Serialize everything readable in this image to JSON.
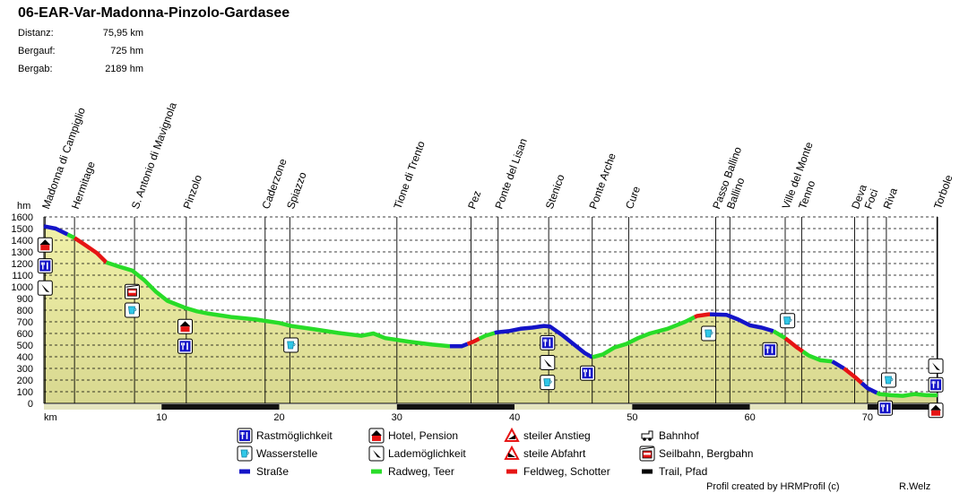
{
  "title": "06-EAR-Var-Madonna-Pinzolo-Gardasee",
  "stats": [
    {
      "label": "Distanz:",
      "value": "75,95 km"
    },
    {
      "label": "Bergauf:",
      "value": "725 hm"
    },
    {
      "label": "Bergab:",
      "value": "2189 hm"
    }
  ],
  "chart_data": {
    "type": "area",
    "title": "06-EAR-Var-Madonna-Pinzolo-Gardasee",
    "xlabel": "km",
    "ylabel": "hm",
    "xlim": [
      0,
      75.95
    ],
    "ylim": [
      0,
      1600
    ],
    "x_ticks": [
      10,
      20,
      30,
      40,
      50,
      60,
      70
    ],
    "y_ticks": [
      0,
      100,
      200,
      300,
      400,
      500,
      600,
      700,
      800,
      900,
      1000,
      1100,
      1200,
      1300,
      1400,
      1500,
      1600
    ],
    "grid": true,
    "profile": [
      {
        "x": 0,
        "y": 1520
      },
      {
        "x": 1,
        "y": 1500
      },
      {
        "x": 2,
        "y": 1450
      },
      {
        "x": 2.6,
        "y": 1420
      },
      {
        "x": 3.5,
        "y": 1360
      },
      {
        "x": 4.5,
        "y": 1290
      },
      {
        "x": 5.3,
        "y": 1210
      },
      {
        "x": 6.5,
        "y": 1170
      },
      {
        "x": 7.5,
        "y": 1140
      },
      {
        "x": 8.5,
        "y": 1060
      },
      {
        "x": 9.5,
        "y": 960
      },
      {
        "x": 10.5,
        "y": 880
      },
      {
        "x": 12,
        "y": 820
      },
      {
        "x": 13,
        "y": 790
      },
      {
        "x": 14,
        "y": 770
      },
      {
        "x": 16,
        "y": 740
      },
      {
        "x": 18,
        "y": 720
      },
      {
        "x": 19,
        "y": 705
      },
      {
        "x": 20,
        "y": 690
      },
      {
        "x": 21,
        "y": 665
      },
      {
        "x": 23,
        "y": 635
      },
      {
        "x": 25,
        "y": 605
      },
      {
        "x": 27,
        "y": 580
      },
      {
        "x": 28,
        "y": 600
      },
      {
        "x": 29,
        "y": 560
      },
      {
        "x": 31,
        "y": 530
      },
      {
        "x": 33,
        "y": 505
      },
      {
        "x": 34.5,
        "y": 490
      },
      {
        "x": 35.5,
        "y": 490
      },
      {
        "x": 36.5,
        "y": 530
      },
      {
        "x": 37.5,
        "y": 580
      },
      {
        "x": 38.5,
        "y": 610
      },
      {
        "x": 39.5,
        "y": 620
      },
      {
        "x": 40.5,
        "y": 640
      },
      {
        "x": 41.5,
        "y": 650
      },
      {
        "x": 42.5,
        "y": 665
      },
      {
        "x": 43,
        "y": 660
      },
      {
        "x": 44,
        "y": 590
      },
      {
        "x": 45,
        "y": 510
      },
      {
        "x": 46,
        "y": 430
      },
      {
        "x": 46.6,
        "y": 395
      },
      {
        "x": 47.5,
        "y": 420
      },
      {
        "x": 48.5,
        "y": 480
      },
      {
        "x": 49.5,
        "y": 510
      },
      {
        "x": 50.5,
        "y": 560
      },
      {
        "x": 51.5,
        "y": 600
      },
      {
        "x": 53,
        "y": 640
      },
      {
        "x": 54.5,
        "y": 700
      },
      {
        "x": 55.5,
        "y": 750
      },
      {
        "x": 56.5,
        "y": 765
      },
      {
        "x": 58,
        "y": 760
      },
      {
        "x": 59,
        "y": 720
      },
      {
        "x": 60,
        "y": 670
      },
      {
        "x": 61,
        "y": 650
      },
      {
        "x": 62,
        "y": 620
      },
      {
        "x": 63,
        "y": 560
      },
      {
        "x": 64,
        "y": 480
      },
      {
        "x": 65,
        "y": 410
      },
      {
        "x": 66,
        "y": 370
      },
      {
        "x": 67,
        "y": 360
      },
      {
        "x": 68,
        "y": 300
      },
      {
        "x": 69,
        "y": 220
      },
      {
        "x": 70,
        "y": 130
      },
      {
        "x": 71,
        "y": 80
      },
      {
        "x": 72,
        "y": 70
      },
      {
        "x": 73,
        "y": 65
      },
      {
        "x": 74,
        "y": 80
      },
      {
        "x": 75,
        "y": 70
      },
      {
        "x": 75.95,
        "y": 70
      }
    ],
    "surface_segments": [
      {
        "from": 0,
        "to": 2,
        "type": "road"
      },
      {
        "from": 2,
        "to": 2.6,
        "type": "cycle"
      },
      {
        "from": 2.6,
        "to": 5.3,
        "type": "gravel"
      },
      {
        "from": 5.3,
        "to": 34.5,
        "type": "cycle"
      },
      {
        "from": 34.5,
        "to": 36,
        "type": "road"
      },
      {
        "from": 36,
        "to": 37,
        "type": "gravel"
      },
      {
        "from": 37,
        "to": 38.3,
        "type": "cycle"
      },
      {
        "from": 38.3,
        "to": 46.6,
        "type": "road"
      },
      {
        "from": 46.6,
        "to": 55.3,
        "type": "cycle"
      },
      {
        "from": 55.3,
        "to": 56.6,
        "type": "gravel"
      },
      {
        "from": 56.6,
        "to": 62,
        "type": "road"
      },
      {
        "from": 62,
        "to": 63,
        "type": "cycle"
      },
      {
        "from": 63,
        "to": 64.5,
        "type": "gravel"
      },
      {
        "from": 64.5,
        "to": 67,
        "type": "cycle"
      },
      {
        "from": 67,
        "to": 68,
        "type": "road"
      },
      {
        "from": 68,
        "to": 69.5,
        "type": "gravel"
      },
      {
        "from": 69.5,
        "to": 70.8,
        "type": "road"
      },
      {
        "from": 70.8,
        "to": 75.95,
        "type": "cycle"
      }
    ],
    "bottom_bar": [
      {
        "from": 0,
        "to": 10,
        "color": "#e5e5c0"
      },
      {
        "from": 10,
        "to": 20,
        "color": "#111111"
      },
      {
        "from": 20,
        "to": 30,
        "color": "#e5e5c0"
      },
      {
        "from": 30,
        "to": 40,
        "color": "#111111"
      },
      {
        "from": 40,
        "to": 50,
        "color": "#e5e5c0"
      },
      {
        "from": 50,
        "to": 60,
        "color": "#111111"
      },
      {
        "from": 60,
        "to": 70,
        "color": "#e5e5c0"
      },
      {
        "from": 70,
        "to": 75.95,
        "color": "#111111"
      }
    ],
    "waypoints": [
      {
        "name": "Madonna di Campiglio",
        "km": 0.1
      },
      {
        "name": "Hermitage",
        "km": 2.6
      },
      {
        "name": "S. Antonio di Mavignola",
        "km": 7.7
      },
      {
        "name": "Pinzolo",
        "km": 12.1
      },
      {
        "name": "Caderzone",
        "km": 18.8
      },
      {
        "name": "Spiazzo",
        "km": 20.9
      },
      {
        "name": "Tione di Trento",
        "km": 30
      },
      {
        "name": "Pez",
        "km": 36.3
      },
      {
        "name": "Ponte del Lisan",
        "km": 38.6
      },
      {
        "name": "Stenico",
        "km": 42.9
      },
      {
        "name": "Ponte Arche",
        "km": 46.6
      },
      {
        "name": "Cure",
        "km": 49.7
      },
      {
        "name": "Passo Ballino",
        "km": 57.1
      },
      {
        "name": "Ballino",
        "km": 58.3
      },
      {
        "name": "Ville del Monte",
        "km": 63.0
      },
      {
        "name": "Tenno",
        "km": 64.4
      },
      {
        "name": "Deva",
        "km": 68.9
      },
      {
        "name": "Foci",
        "km": 70.0
      },
      {
        "name": "Riva",
        "km": 71.6
      },
      {
        "name": "Torbole",
        "km": 75.9
      }
    ],
    "poi_markers": [
      {
        "type": "hotel",
        "km": 0.1,
        "y": 1360
      },
      {
        "type": "rest",
        "km": 0.1,
        "y": 1180
      },
      {
        "type": "charging",
        "km": 0.1,
        "y": 990
      },
      {
        "type": "cablecar",
        "km": 7.5,
        "y": 960
      },
      {
        "type": "water",
        "km": 7.5,
        "y": 800
      },
      {
        "type": "hotel",
        "km": 12,
        "y": 660
      },
      {
        "type": "rest",
        "km": 12,
        "y": 490
      },
      {
        "type": "water",
        "km": 21,
        "y": 500
      },
      {
        "type": "rest",
        "km": 42.8,
        "y": 520
      },
      {
        "type": "charging",
        "km": 42.8,
        "y": 350
      },
      {
        "type": "water",
        "km": 42.8,
        "y": 180
      },
      {
        "type": "rest",
        "km": 46.2,
        "y": 260
      },
      {
        "type": "water",
        "km": 56.5,
        "y": 600
      },
      {
        "type": "water",
        "km": 63.2,
        "y": 710
      },
      {
        "type": "rest",
        "km": 61.7,
        "y": 460
      },
      {
        "type": "water",
        "km": 71.8,
        "y": 200
      },
      {
        "type": "rest",
        "km": 71.5,
        "y": -40
      },
      {
        "type": "charging",
        "km": 75.8,
        "y": 320
      },
      {
        "type": "rest",
        "km": 75.8,
        "y": 160
      },
      {
        "type": "hotel",
        "km": 75.8,
        "y": -60
      }
    ],
    "legend": [
      {
        "icon": "rest",
        "label": "Rastmöglichkeit"
      },
      {
        "icon": "hotel",
        "label": "Hotel, Pension"
      },
      {
        "icon": "steep-up",
        "label": "steiler Anstieg"
      },
      {
        "icon": "train",
        "label": "Bahnhof"
      },
      {
        "icon": "water",
        "label": "Wasserstelle"
      },
      {
        "icon": "charging",
        "label": "Lademöglichkeit"
      },
      {
        "icon": "steep-down",
        "label": "steile Abfahrt"
      },
      {
        "icon": "cablecar",
        "label": "Seilbahn, Bergbahn"
      },
      {
        "icon": "road",
        "label": "Straße"
      },
      {
        "icon": "cycle",
        "label": "Radweg, Teer"
      },
      {
        "icon": "gravel",
        "label": "Feldweg, Schotter"
      },
      {
        "icon": "trail",
        "label": "Trail, Pfad"
      }
    ],
    "colors": {
      "road": "#1414c8",
      "cycle": "#28dc28",
      "gravel": "#e61414",
      "trail": "#000000",
      "fill": "#f0f0a8",
      "fill_low": "#d8d890"
    }
  },
  "footer": {
    "credit": "Profil created by HRMProfil (c)",
    "author": "R.Welz"
  }
}
